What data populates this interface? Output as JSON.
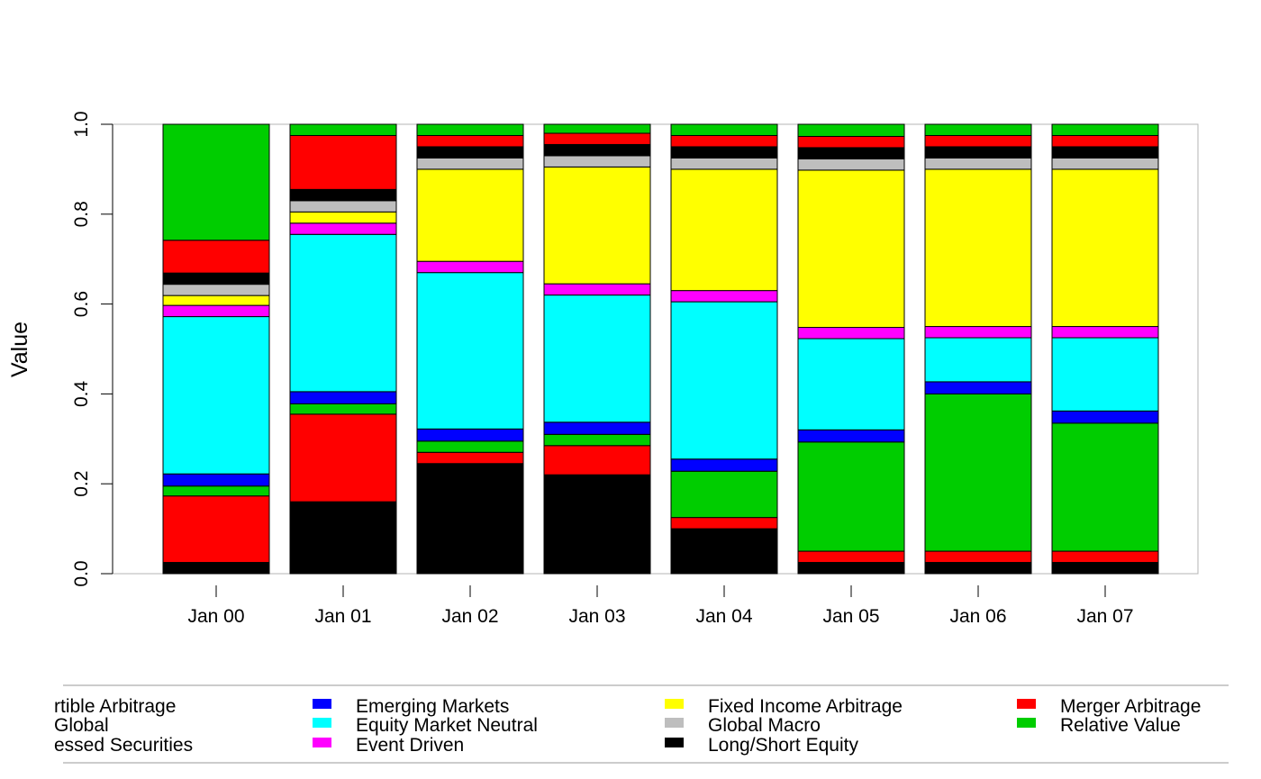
{
  "chart_data": {
    "type": "bar",
    "stacked": true,
    "title": "",
    "xlabel": "",
    "ylabel": "Value",
    "ylim": [
      0,
      1
    ],
    "yticks": [
      "0.0",
      "0.2",
      "0.4",
      "0.6",
      "0.8",
      "1.0"
    ],
    "categories": [
      "Jan 00",
      "Jan 01",
      "Jan 02",
      "Jan 03",
      "Jan 04",
      "Jan 05",
      "Jan 06",
      "Jan 07"
    ],
    "legend_placement": "bottom",
    "series": [
      {
        "name": "Convertible Arbitrage",
        "legend_text": "rtible Arbitrage",
        "color": "#000000",
        "values": [
          0.025,
          0.16,
          0.245,
          0.22,
          0.1,
          0.025,
          0.025,
          0.025
        ]
      },
      {
        "name": "CTA Global",
        "legend_text": "Global",
        "color": "#ff0000",
        "values": [
          0.148,
          0.195,
          0.025,
          0.065,
          0.025,
          0.025,
          0.025,
          0.025
        ]
      },
      {
        "name": "Distressed Securities",
        "legend_text": "essed Securities",
        "color": "#00cd00",
        "values": [
          0.022,
          0.023,
          0.025,
          0.025,
          0.103,
          0.243,
          0.35,
          0.285
        ]
      },
      {
        "name": "Emerging Markets",
        "color": "#0000ff",
        "values": [
          0.027,
          0.027,
          0.027,
          0.027,
          0.027,
          0.027,
          0.027,
          0.027
        ]
      },
      {
        "name": "Equity Market Neutral",
        "color": "#00ffff",
        "values": [
          0.35,
          0.35,
          0.348,
          0.283,
          0.35,
          0.203,
          0.098,
          0.163
        ]
      },
      {
        "name": "Event Driven",
        "color": "#ff00ff",
        "values": [
          0.025,
          0.025,
          0.025,
          0.025,
          0.025,
          0.025,
          0.025,
          0.025
        ]
      },
      {
        "name": "Fixed Income Arbitrage",
        "color": "#ffff00",
        "values": [
          0.022,
          0.025,
          0.205,
          0.26,
          0.27,
          0.35,
          0.35,
          0.35
        ]
      },
      {
        "name": "Global Macro",
        "color": "#bebebe",
        "values": [
          0.025,
          0.025,
          0.025,
          0.025,
          0.025,
          0.025,
          0.025,
          0.025
        ]
      },
      {
        "name": "Long/Short Equity",
        "color": "#000000",
        "values": [
          0.025,
          0.025,
          0.025,
          0.025,
          0.025,
          0.025,
          0.025,
          0.025
        ]
      },
      {
        "name": "Merger Arbitrage",
        "color": "#ff0000",
        "values": [
          0.073,
          0.12,
          0.025,
          0.025,
          0.025,
          0.025,
          0.025,
          0.025
        ]
      },
      {
        "name": "Relative Value",
        "color": "#00cd00",
        "values": [
          0.258,
          0.025,
          0.025,
          0.025,
          0.025,
          0.027,
          0.025,
          0.025
        ]
      }
    ]
  }
}
